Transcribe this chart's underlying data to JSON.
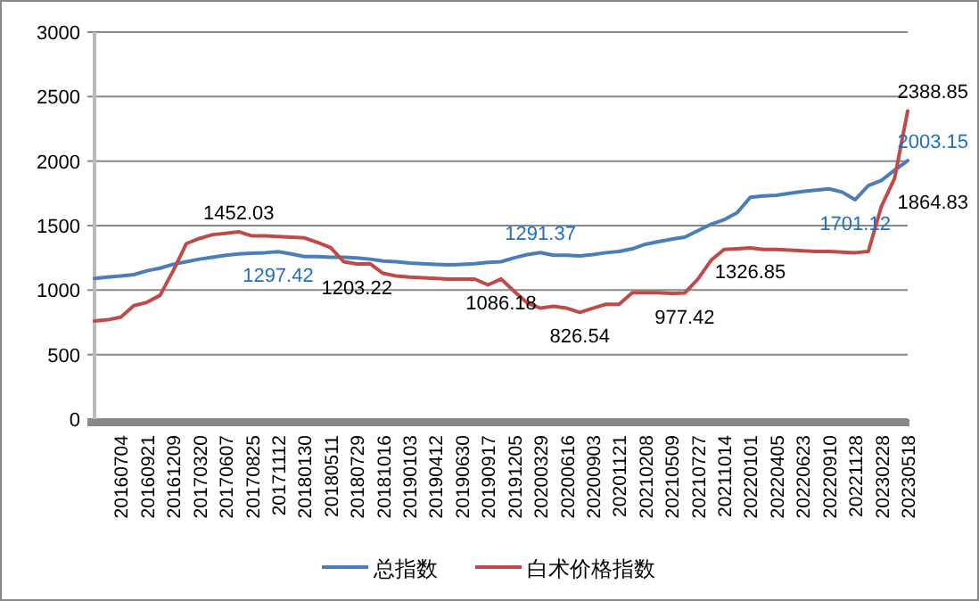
{
  "chart_data": {
    "type": "line",
    "categories": [
      null,
      null,
      "20160704",
      null,
      "20160921",
      null,
      "20161209",
      null,
      "20170320",
      null,
      "20170607",
      null,
      "20170825",
      null,
      "20171112",
      null,
      "20180130",
      null,
      "20180511",
      null,
      "20180729",
      null,
      "20181016",
      null,
      "20190103",
      null,
      "20190412",
      null,
      "20190630",
      null,
      "20190917",
      null,
      "20191205",
      null,
      "20200329",
      null,
      "20200616",
      null,
      "20200903",
      null,
      "20201121",
      null,
      "20210208",
      null,
      "20210509",
      null,
      "20210727",
      null,
      "20211014",
      null,
      "20220101",
      null,
      "20220405",
      null,
      "20220623",
      null,
      "20220910",
      null,
      "20221128",
      null,
      "20230228",
      null,
      "20230518"
    ],
    "series": [
      {
        "name": "总指数",
        "color": "#4a7ebb",
        "values": [
          1090,
          1100,
          1110,
          1120,
          1150,
          1170,
          1200,
          1220,
          1240,
          1255,
          1270,
          1280,
          1285,
          1290,
          1297.42,
          1280,
          1260,
          1260,
          1255,
          1255,
          1250,
          1240,
          1225,
          1220,
          1210,
          1205,
          1200,
          1195,
          1200,
          1205,
          1215,
          1220,
          1250,
          1275,
          1291.37,
          1270,
          1270,
          1265,
          1275,
          1290,
          1300,
          1320,
          1355,
          1375,
          1395,
          1410,
          1460,
          1510,
          1545,
          1600,
          1720,
          1730,
          1735,
          1750,
          1765,
          1775,
          1785,
          1760,
          1701.12,
          1810,
          1850,
          1930,
          2003.15
        ],
        "value_labels": [
          null,
          null,
          null,
          null,
          null,
          null,
          null,
          null,
          null,
          null,
          null,
          null,
          null,
          null,
          "1297.42",
          null,
          null,
          null,
          null,
          null,
          null,
          null,
          null,
          null,
          null,
          null,
          null,
          null,
          null,
          null,
          null,
          null,
          null,
          null,
          "1291.37",
          null,
          null,
          null,
          null,
          null,
          null,
          null,
          null,
          null,
          null,
          null,
          null,
          null,
          null,
          null,
          null,
          null,
          null,
          null,
          null,
          null,
          null,
          null,
          "1701.12",
          null,
          null,
          null,
          "2003.15"
        ]
      },
      {
        "name": "白术价格指数",
        "color": "#be4b48",
        "values": [
          760,
          770,
          790,
          880,
          905,
          960,
          1150,
          1360,
          1400,
          1430,
          1440,
          1452.03,
          1420,
          1420,
          1415,
          1410,
          1405,
          1370,
          1330,
          1220,
          1203.22,
          1205,
          1130,
          1110,
          1100,
          1095,
          1090,
          1085,
          1085,
          1085,
          1040,
          1086.18,
          990,
          900,
          860,
          875,
          860,
          826.54,
          860,
          890,
          890,
          980,
          980,
          980,
          975,
          977.42,
          1085,
          1230,
          1315,
          1320,
          1326.85,
          1315,
          1315,
          1310,
          1305,
          1300,
          1300,
          1295,
          1290,
          1300,
          1650,
          1864.83,
          2388.85
        ],
        "value_labels": [
          null,
          null,
          null,
          null,
          null,
          null,
          null,
          null,
          null,
          null,
          null,
          "1452.03",
          null,
          null,
          null,
          null,
          null,
          null,
          null,
          null,
          "1203.22",
          null,
          null,
          null,
          null,
          null,
          null,
          null,
          null,
          null,
          null,
          "1086.18",
          null,
          null,
          null,
          null,
          null,
          "826.54",
          null,
          null,
          null,
          null,
          null,
          null,
          null,
          "977.42",
          null,
          null,
          null,
          null,
          "1326.85",
          null,
          null,
          null,
          null,
          null,
          null,
          null,
          null,
          null,
          null,
          "1864.83",
          "2388.85"
        ]
      }
    ],
    "ylim": [
      0,
      3000
    ],
    "yticks": [
      0,
      500,
      1000,
      1500,
      2000,
      2500,
      3000
    ],
    "grid": "y",
    "legend": "bottom",
    "marker": "none",
    "line_style": "solid"
  }
}
